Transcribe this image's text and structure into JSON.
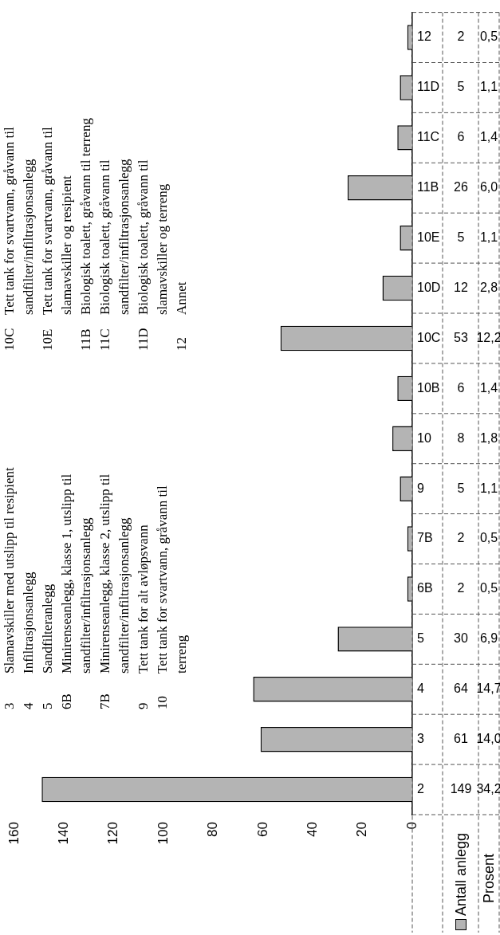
{
  "chart_data": {
    "type": "bar",
    "orientation": "horizontal",
    "categories": [
      "12",
      "11D",
      "11C",
      "11B",
      "10E",
      "10D",
      "10C",
      "10B",
      "10",
      "9",
      "7B",
      "6B",
      "5",
      "4",
      "3",
      "2"
    ],
    "series": [
      {
        "name": "Antall anlegg",
        "color": "#b4b4b4",
        "values": [
          2,
          5,
          6,
          26,
          5,
          12,
          53,
          6,
          8,
          5,
          2,
          2,
          30,
          64,
          61,
          149
        ]
      }
    ],
    "xlim": [
      160,
      0
    ],
    "xticks": [
      0,
      20,
      40,
      60,
      80,
      100,
      120,
      140,
      160
    ],
    "grid": false,
    "legend": "bottom right",
    "data_labels": true,
    "annotations": [
      "3 Slamavskiller med utslipp til resipient",
      "4 Infiltrasjonsanlegg",
      "5 Sandfilteranlegg",
      "6B Minirenseanlegg, klasse 1, utslipp til sandfilter/infiltrasjonsanlegg",
      "7B Minirenseanlegg, klasse 2, utslipp til sandfilter/infiltrasjonsanlegg",
      "9 Tett tank for alt avløpsvann",
      "10 Tett tank for svartvann, gråvann til terreng",
      "10C Tett tank for svartvann, gråvann til sandfilter/infiltrasjonsanlegg",
      "10E Tett tank for svartvann, gråvann til slamavskiller og resipient",
      "11B Biologisk toalett, gråvann til terreng",
      "11C Biologisk toalett, gråvann til sandfilter/infiltrasjonsanlegg",
      "11D Biologisk toalett, gråvann til slamavskiller og terreng",
      "12 Annet",
      "Prosent",
      "0,5",
      "1,1",
      "1,4",
      "6,0",
      "1,1",
      "2,8",
      "12,2",
      "1,4",
      "1,8",
      "1,1",
      "0,5",
      "0,5",
      "6,9",
      "14,7",
      "14,0",
      "34,2"
    ]
  }
}
